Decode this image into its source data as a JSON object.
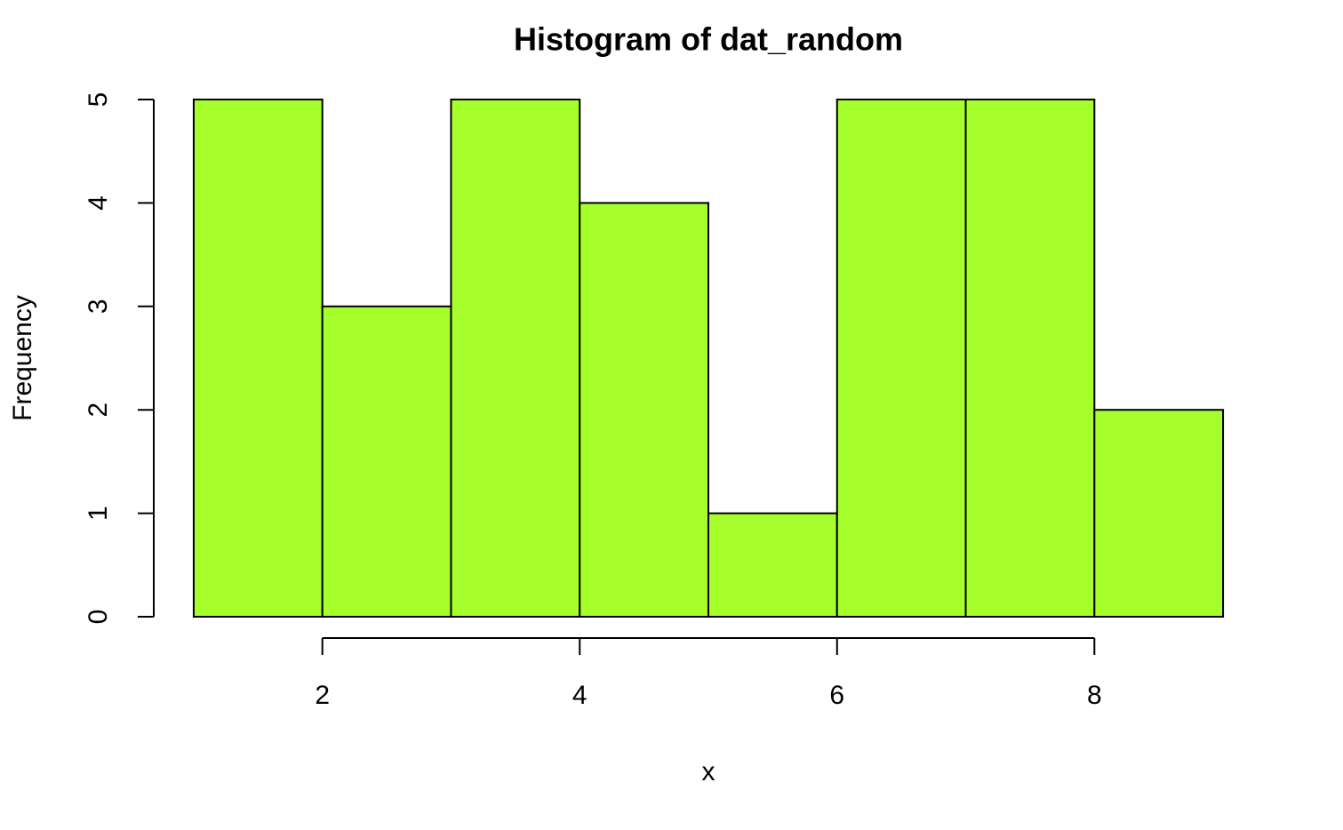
{
  "chart_data": {
    "type": "histogram",
    "title": "Histogram of dat_random",
    "xlabel": "x",
    "ylabel": "Frequency",
    "bins": [
      1,
      2,
      3,
      4,
      5,
      6,
      7,
      8,
      9
    ],
    "values": [
      5,
      3,
      5,
      4,
      1,
      5,
      5,
      2
    ],
    "color": "#a6ff2a",
    "xlim": [
      0.68,
      9.32
    ],
    "xticks": [
      2,
      4,
      6,
      8
    ],
    "ylim": [
      -0.2,
      5.2
    ],
    "yticks": [
      0,
      1,
      2,
      3,
      4,
      5
    ]
  }
}
